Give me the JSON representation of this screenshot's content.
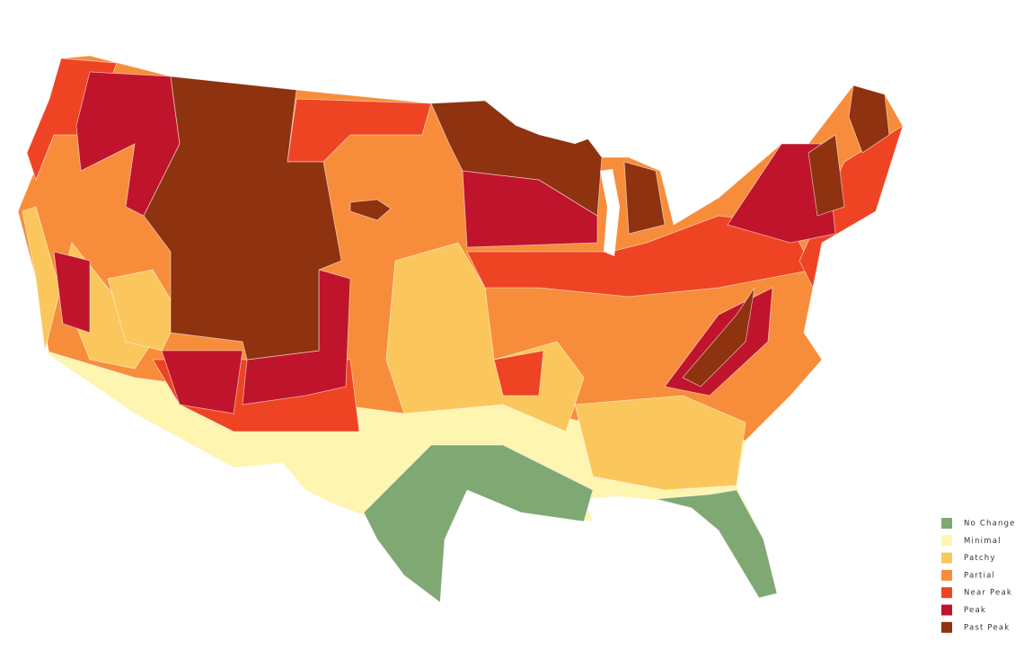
{
  "legend": {
    "items": [
      {
        "label": "No Change",
        "color": "#7fa873"
      },
      {
        "label": "Minimal",
        "color": "#fdf5b0"
      },
      {
        "label": "Patchy",
        "color": "#fbc75c"
      },
      {
        "label": "Partial",
        "color": "#f78d3b"
      },
      {
        "label": "Near Peak",
        "color": "#ee4424"
      },
      {
        "label": "Peak",
        "color": "#c0142c"
      },
      {
        "label": "Past Peak",
        "color": "#8e3210"
      }
    ]
  }
}
